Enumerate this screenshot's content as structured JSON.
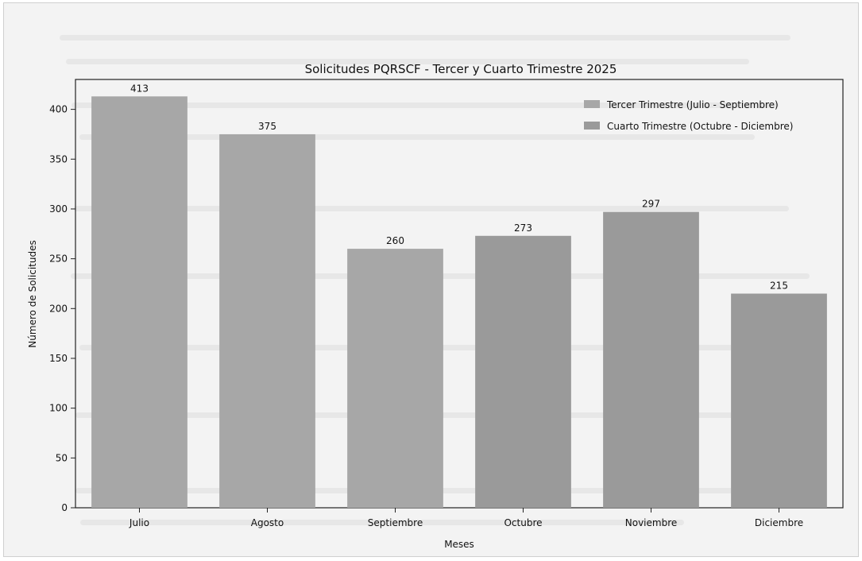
{
  "chart_data": {
    "type": "bar",
    "title": "Solicitudes PQRSCF - Tercer y Cuarto Trimestre 2025",
    "xlabel": "Meses",
    "ylabel": "Número de Solicitudes",
    "categories": [
      "Julio",
      "Agosto",
      "Septiembre",
      "Octubre",
      "Noviembre",
      "Diciembre"
    ],
    "series": [
      {
        "name": "Tercer Trimestre (Julio - Septiembre)",
        "values": [
          413,
          375,
          260,
          null,
          null,
          null
        ],
        "color": "#a7a7a7"
      },
      {
        "name": "Cuarto Trimestre (Octubre - Diciembre)",
        "values": [
          null,
          null,
          null,
          273,
          297,
          215
        ],
        "color": "#9a9a9a"
      }
    ],
    "ylim": [
      0,
      430
    ],
    "yticks": [
      0,
      50,
      100,
      150,
      200,
      250,
      300,
      350,
      400
    ],
    "legend_position": "top-right",
    "grid": false
  }
}
